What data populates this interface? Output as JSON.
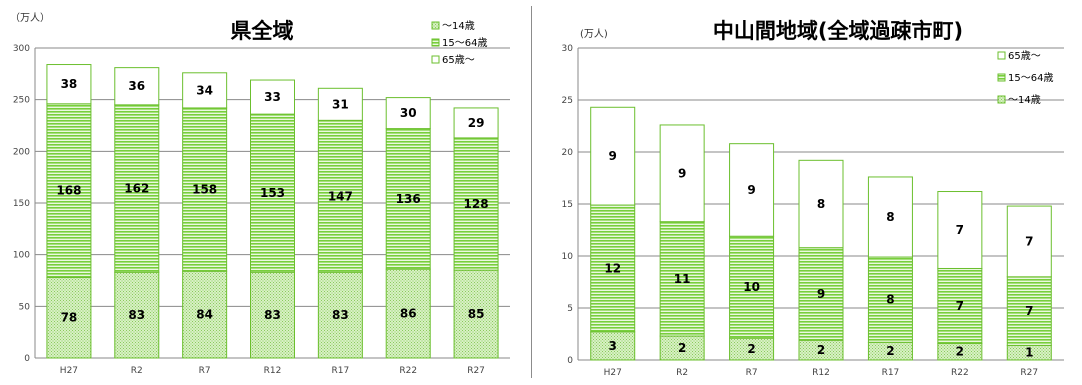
{
  "chart_data": [
    {
      "type": "bar",
      "stacked": true,
      "title": "県全域",
      "unit": "（万人）",
      "categories": [
        "H27",
        "R2",
        "R7",
        "R12",
        "R17",
        "R22",
        "R27"
      ],
      "ylim": [
        0,
        300
      ],
      "yticks": [
        0,
        50,
        100,
        150,
        200,
        250,
        300
      ],
      "grid": true,
      "legend_position": "top-right",
      "legend": [
        "～14歳",
        "15～64歳",
        "65歳～"
      ],
      "series": [
        {
          "name": "～14歳",
          "values": [
            78,
            83,
            84,
            83,
            83,
            86,
            85
          ],
          "color": "#bfe8a3"
        },
        {
          "name": "15～64歳",
          "values": [
            168,
            162,
            158,
            153,
            147,
            136,
            128
          ],
          "color": "#7fd24a"
        },
        {
          "name": "65歳～",
          "values": [
            38,
            36,
            34,
            33,
            31,
            30,
            29
          ],
          "color": "#ffffff"
        }
      ]
    },
    {
      "type": "bar",
      "stacked": true,
      "title": "中山間地域(全域過疎市町)",
      "unit": "(万人)",
      "categories": [
        "H27",
        "R2",
        "R7",
        "R12",
        "R17",
        "R22",
        "R27"
      ],
      "ylim": [
        0,
        30
      ],
      "yticks": [
        0,
        5,
        10,
        15,
        20,
        25,
        30
      ],
      "grid": true,
      "legend_position": "top-right",
      "legend": [
        "65歳～",
        "15～64歳",
        "～14歳"
      ],
      "series": [
        {
          "name": "～14歳",
          "values": [
            2.7,
            2.3,
            2.1,
            1.9,
            1.7,
            1.6,
            1.4
          ],
          "labels": [
            "3",
            "2",
            "2",
            "2",
            "2",
            "2",
            "1"
          ],
          "color": "#bfe8a3"
        },
        {
          "name": "15～64歳",
          "values": [
            12.2,
            11.0,
            9.8,
            8.9,
            8.2,
            7.2,
            6.6
          ],
          "labels": [
            "12",
            "11",
            "10",
            "9",
            "8",
            "7",
            "7"
          ],
          "color": "#7fd24a"
        },
        {
          "name": "65歳～",
          "values": [
            9.4,
            9.3,
            8.9,
            8.4,
            7.7,
            7.4,
            6.8
          ],
          "labels": [
            "9",
            "9",
            "9",
            "8",
            "8",
            "7",
            "7"
          ],
          "color": "#ffffff"
        }
      ]
    }
  ]
}
